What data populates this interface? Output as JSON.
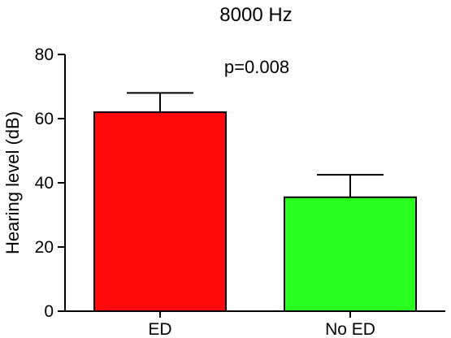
{
  "chart_data": {
    "type": "bar",
    "title": "8000 Hz",
    "ylabel": "Hearing level (dB)",
    "xlabel": "",
    "ylim": [
      0,
      80
    ],
    "yticks": [
      0,
      20,
      40,
      60,
      80
    ],
    "categories": [
      "ED",
      "No ED"
    ],
    "values": [
      62,
      35.5
    ],
    "errors": [
      6,
      7
    ],
    "colors": [
      "#ff0a0a",
      "#28ff1e"
    ],
    "annotation": "p=0.008",
    "grid": false,
    "legend": "none"
  }
}
